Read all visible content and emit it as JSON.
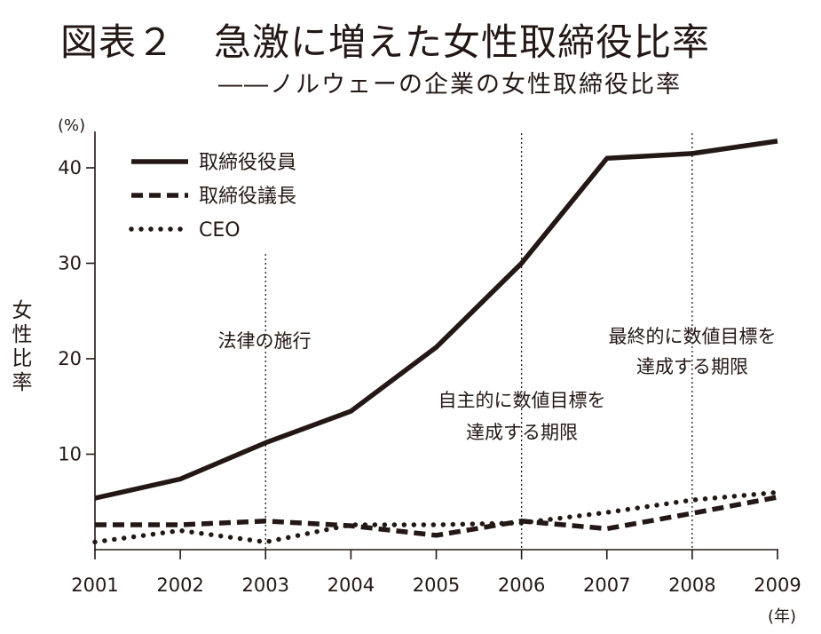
{
  "header": {
    "figure_label": "図表２",
    "title": "急激に増えた女性取締役比率",
    "subtitle": "――ノルウェーの企業の女性取締役比率"
  },
  "chart_data": {
    "type": "line",
    "x": [
      2001,
      2002,
      2003,
      2004,
      2005,
      2006,
      2007,
      2008,
      2009
    ],
    "x_tick_labels": [
      "2001",
      "2002",
      "2003",
      "2004",
      "2005",
      "2006",
      "2007",
      "2008",
      "2009"
    ],
    "xlabel_unit": "(年)",
    "ylabel": "女性比率",
    "ylabel_unit": "(%)",
    "y_tick_labels": [
      "10",
      "20",
      "30",
      "40"
    ],
    "ylim": [
      0,
      44
    ],
    "grid": false,
    "legend_position": "top-left",
    "series": [
      {
        "name": "取締役役員",
        "style": "solid",
        "values": [
          5.4,
          7.4,
          11.2,
          14.5,
          21.2,
          30.0,
          41.0,
          41.5,
          42.8
        ]
      },
      {
        "name": "取締役議長",
        "style": "dashed",
        "values": [
          2.6,
          2.6,
          3.0,
          2.5,
          1.5,
          3.0,
          2.2,
          3.8,
          5.5
        ]
      },
      {
        "name": "CEO",
        "style": "dotted",
        "values": [
          0.8,
          2.0,
          0.8,
          2.6,
          2.6,
          2.8,
          3.9,
          5.2,
          6.0
        ]
      }
    ],
    "annotations": [
      {
        "year": 2003,
        "lines": [
          "法律の施行"
        ]
      },
      {
        "year": 2006,
        "lines": [
          "自主的に数値目標を",
          "達成する期限"
        ]
      },
      {
        "year": 2008,
        "lines": [
          "最終的に数値目標を",
          "達成する期限"
        ]
      }
    ],
    "colors": {
      "ink": "#231815"
    }
  }
}
